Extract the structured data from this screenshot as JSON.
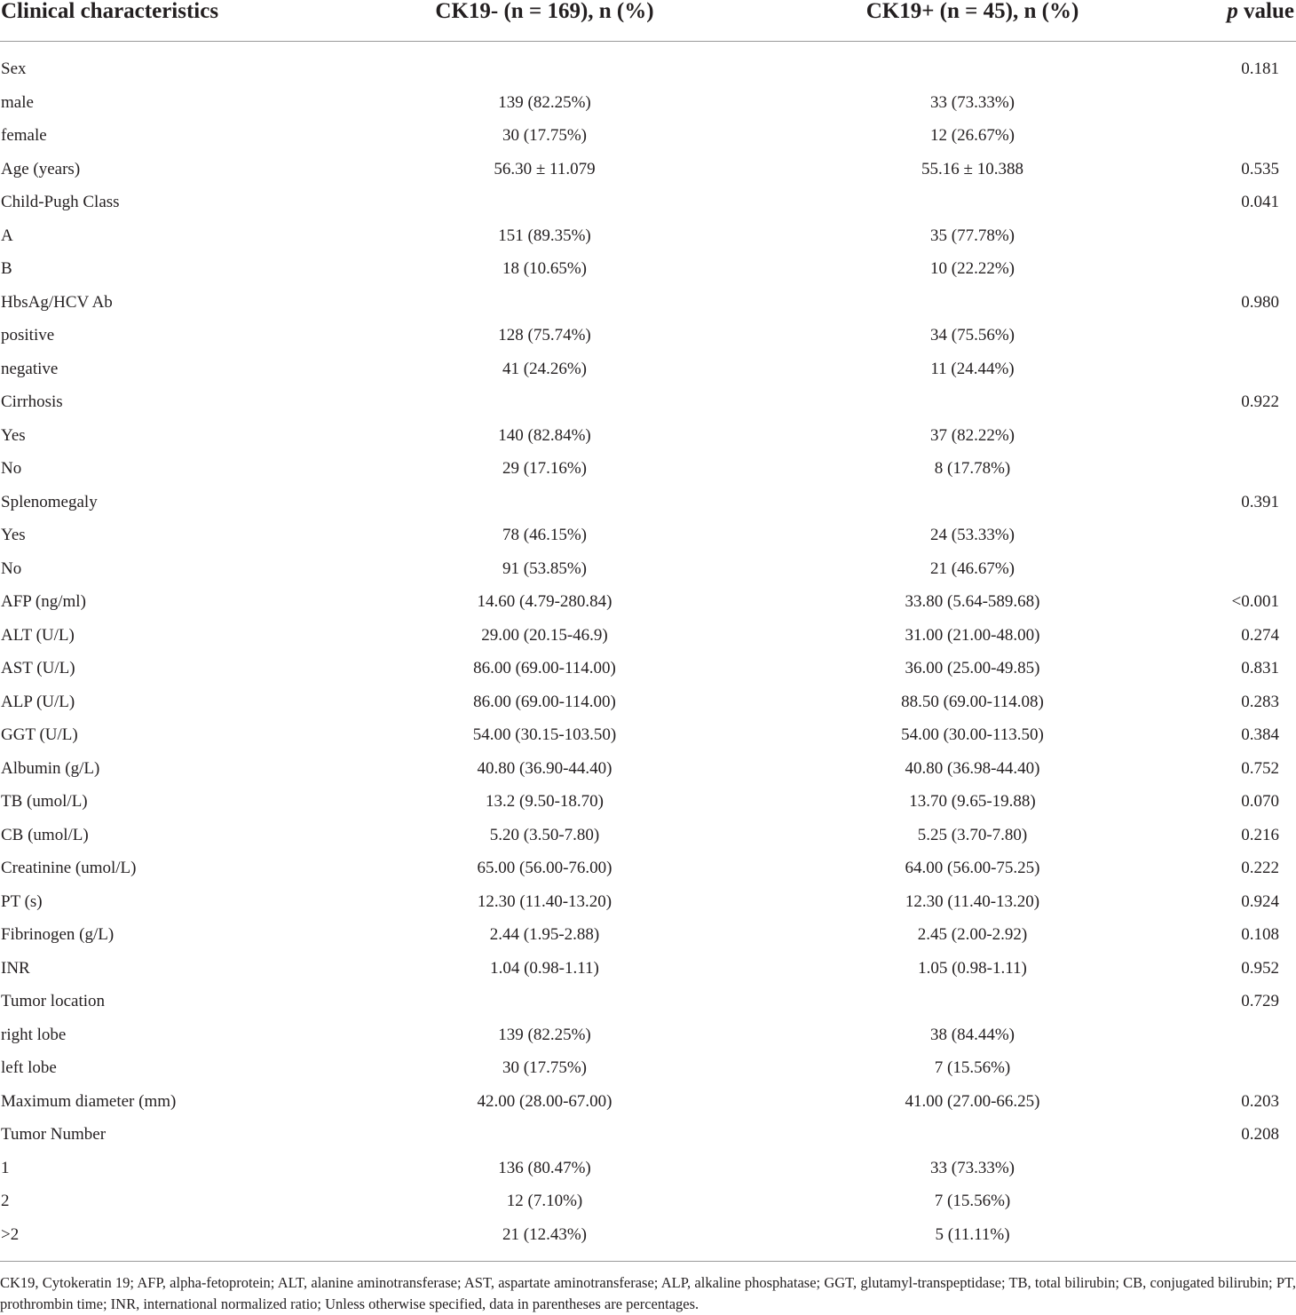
{
  "table": {
    "headers": {
      "col1": "Clinical characteristics",
      "col2": "CK19- (n = 169), n (%)",
      "col3": "CK19+ (n = 45), n (%)",
      "col4_italic": "p",
      "col4_rest": " value"
    },
    "rows": [
      {
        "label": "Sex",
        "ck19_neg": "",
        "ck19_pos": "",
        "p": "0.181"
      },
      {
        "label": "male",
        "ck19_neg": "139 (82.25%)",
        "ck19_pos": "33 (73.33%)",
        "p": ""
      },
      {
        "label": "female",
        "ck19_neg": "30 (17.75%)",
        "ck19_pos": "12 (26.67%)",
        "p": ""
      },
      {
        "label": "Age (years)",
        "ck19_neg": "56.30 ± 11.079",
        "ck19_pos": "55.16 ± 10.388",
        "p": "0.535"
      },
      {
        "label": "Child-Pugh Class",
        "ck19_neg": "",
        "ck19_pos": "",
        "p": "0.041"
      },
      {
        "label": "A",
        "ck19_neg": "151 (89.35%)",
        "ck19_pos": "35 (77.78%)",
        "p": ""
      },
      {
        "label": "B",
        "ck19_neg": "18 (10.65%)",
        "ck19_pos": "10 (22.22%)",
        "p": ""
      },
      {
        "label": "HbsAg/HCV Ab",
        "ck19_neg": "",
        "ck19_pos": "",
        "p": "0.980"
      },
      {
        "label": "positive",
        "ck19_neg": "128 (75.74%)",
        "ck19_pos": "34 (75.56%)",
        "p": ""
      },
      {
        "label": "negative",
        "ck19_neg": "41 (24.26%)",
        "ck19_pos": "11 (24.44%)",
        "p": ""
      },
      {
        "label": "Cirrhosis",
        "ck19_neg": "",
        "ck19_pos": "",
        "p": "0.922"
      },
      {
        "label": "Yes",
        "ck19_neg": "140 (82.84%)",
        "ck19_pos": "37 (82.22%)",
        "p": ""
      },
      {
        "label": "No",
        "ck19_neg": "29 (17.16%)",
        "ck19_pos": "8 (17.78%)",
        "p": ""
      },
      {
        "label": "Splenomegaly",
        "ck19_neg": "",
        "ck19_pos": "",
        "p": "0.391"
      },
      {
        "label": "Yes",
        "ck19_neg": "78 (46.15%)",
        "ck19_pos": "24 (53.33%)",
        "p": ""
      },
      {
        "label": "No",
        "ck19_neg": "91 (53.85%)",
        "ck19_pos": "21 (46.67%)",
        "p": ""
      },
      {
        "label": "AFP (ng/ml)",
        "ck19_neg": "14.60 (4.79-280.84)",
        "ck19_pos": "33.80 (5.64-589.68)",
        "p": "<0.001"
      },
      {
        "label": "ALT (U/L)",
        "ck19_neg": "29.00 (20.15-46.9)",
        "ck19_pos": "31.00 (21.00-48.00)",
        "p": "0.274"
      },
      {
        "label": "AST (U/L)",
        "ck19_neg": "86.00 (69.00-114.00)",
        "ck19_pos": "36.00 (25.00-49.85)",
        "p": "0.831"
      },
      {
        "label": "ALP (U/L)",
        "ck19_neg": "86.00 (69.00-114.00)",
        "ck19_pos": "88.50 (69.00-114.08)",
        "p": "0.283"
      },
      {
        "label": "GGT (U/L)",
        "ck19_neg": "54.00 (30.15-103.50)",
        "ck19_pos": "54.00 (30.00-113.50)",
        "p": "0.384"
      },
      {
        "label": "Albumin (g/L)",
        "ck19_neg": "40.80 (36.90-44.40)",
        "ck19_pos": "40.80 (36.98-44.40)",
        "p": "0.752"
      },
      {
        "label": "TB (umol/L)",
        "ck19_neg": "13.2 (9.50-18.70)",
        "ck19_pos": "13.70 (9.65-19.88)",
        "p": "0.070"
      },
      {
        "label": "CB (umol/L)",
        "ck19_neg": "5.20 (3.50-7.80)",
        "ck19_pos": "5.25 (3.70-7.80)",
        "p": "0.216"
      },
      {
        "label": "Creatinine (umol/L)",
        "ck19_neg": "65.00 (56.00-76.00)",
        "ck19_pos": "64.00 (56.00-75.25)",
        "p": "0.222"
      },
      {
        "label": "PT (s)",
        "ck19_neg": "12.30 (11.40-13.20)",
        "ck19_pos": "12.30 (11.40-13.20)",
        "p": "0.924"
      },
      {
        "label": "Fibrinogen (g/L)",
        "ck19_neg": "2.44 (1.95-2.88)",
        "ck19_pos": "2.45 (2.00-2.92)",
        "p": "0.108"
      },
      {
        "label": "INR",
        "ck19_neg": "1.04 (0.98-1.11)",
        "ck19_pos": "1.05 (0.98-1.11)",
        "p": "0.952"
      },
      {
        "label": "Tumor location",
        "ck19_neg": "",
        "ck19_pos": "",
        "p": "0.729"
      },
      {
        "label": "right lobe",
        "ck19_neg": "139 (82.25%)",
        "ck19_pos": "38 (84.44%)",
        "p": ""
      },
      {
        "label": "left lobe",
        "ck19_neg": "30 (17.75%)",
        "ck19_pos": "7 (15.56%)",
        "p": ""
      },
      {
        "label": "Maximum diameter (mm)",
        "ck19_neg": "42.00 (28.00-67.00)",
        "ck19_pos": "41.00 (27.00-66.25)",
        "p": "0.203"
      },
      {
        "label": "Tumor Number",
        "ck19_neg": "",
        "ck19_pos": "",
        "p": "0.208"
      },
      {
        "label": "1",
        "ck19_neg": "136 (80.47%)",
        "ck19_pos": "33 (73.33%)",
        "p": ""
      },
      {
        "label": "2",
        "ck19_neg": "12 (7.10%)",
        "ck19_pos": "7 (15.56%)",
        "p": ""
      },
      {
        "label": ">2",
        "ck19_neg": "21 (12.43%)",
        "ck19_pos": "5 (11.11%)",
        "p": ""
      }
    ]
  },
  "footnote": "CK19, Cytokeratin 19; AFP, alpha-fetoprotein; ALT, alanine aminotransferase; AST, aspartate aminotransferase; ALP, alkaline phosphatase; GGT, glutamyl-transpeptidase; TB, total bilirubin; CB, conjugated bilirubin; PT, prothrombin time; INR, international normalized ratio; Unless otherwise specified, data in parentheses are percentages."
}
